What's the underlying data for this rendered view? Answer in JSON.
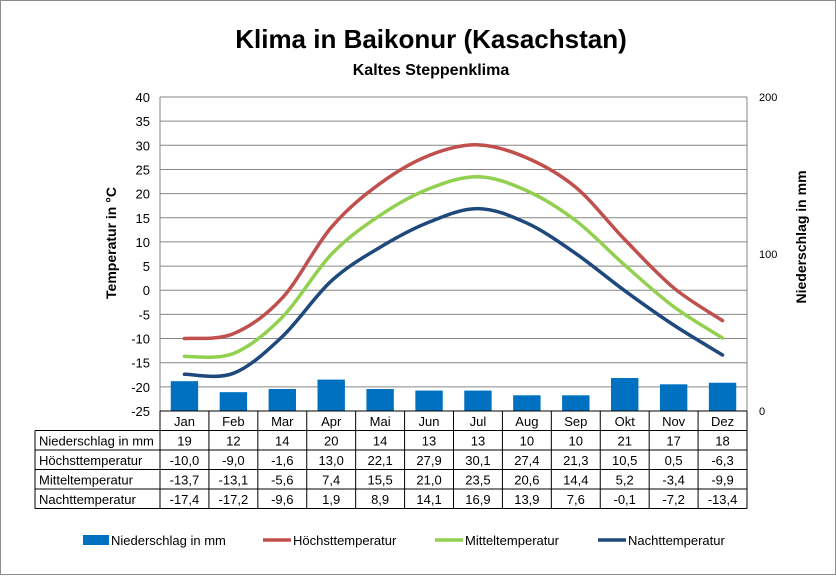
{
  "chart_data": {
    "type": "bar+line",
    "title": "Klima in Baikonur (Kasachstan)",
    "subtitle": "Kaltes Steppenklima",
    "ylabel": "Temperatur in °C",
    "y2label": "Niederschlag in mm",
    "ylim": [
      -25,
      40
    ],
    "y2lim": [
      0,
      200
    ],
    "yticks": [
      "40",
      "35",
      "30",
      "25",
      "20",
      "15",
      "10",
      "5",
      "0",
      "-5",
      "-10",
      "-15",
      "-20",
      "-25"
    ],
    "y2ticks": [
      "200",
      "100",
      "0"
    ],
    "grid": true,
    "legend_position": "bottom",
    "categories": [
      "Jan",
      "Feb",
      "Mar",
      "Apr",
      "Mai",
      "Jun",
      "Jul",
      "Aug",
      "Sep",
      "Okt",
      "Nov",
      "Dez"
    ],
    "series": [
      {
        "name": "Niederschlag in mm",
        "type": "bar",
        "axis": "right",
        "color": "#0070c0",
        "values": [
          19,
          12,
          14,
          20,
          14,
          13,
          13,
          10,
          10,
          21,
          17,
          18
        ],
        "labels": [
          "19",
          "12",
          "14",
          "20",
          "14",
          "13",
          "13",
          "10",
          "10",
          "21",
          "17",
          "18"
        ]
      },
      {
        "name": "Höchsttemperatur",
        "type": "line",
        "axis": "left",
        "color": "#c0504d",
        "values": [
          -10.0,
          -9.0,
          -1.6,
          13.0,
          22.1,
          27.9,
          30.1,
          27.4,
          21.3,
          10.5,
          0.5,
          -6.3
        ],
        "labels": [
          "-10,0",
          "-9,0",
          "-1,6",
          "13,0",
          "22,1",
          "27,9",
          "30,1",
          "27,4",
          "21,3",
          "10,5",
          "0,5",
          "-6,3"
        ]
      },
      {
        "name": "Mitteltemperatur",
        "type": "line",
        "axis": "left",
        "color": "#92d050",
        "values": [
          -13.7,
          -13.1,
          -5.6,
          7.4,
          15.5,
          21.0,
          23.5,
          20.6,
          14.4,
          5.2,
          -3.4,
          -9.9
        ],
        "labels": [
          "-13,7",
          "-13,1",
          "-5,6",
          "7,4",
          "15,5",
          "21,0",
          "23,5",
          "20,6",
          "14,4",
          "5,2",
          "-3,4",
          "-9,9"
        ]
      },
      {
        "name": "Nachttemperatur",
        "type": "line",
        "axis": "left",
        "color": "#1f497d",
        "values": [
          -17.4,
          -17.2,
          -9.6,
          1.9,
          8.9,
          14.1,
          16.9,
          13.9,
          7.6,
          -0.1,
          -7.2,
          -13.4
        ],
        "labels": [
          "-17,4",
          "-17,2",
          "-9,6",
          "1,9",
          "8,9",
          "14,1",
          "16,9",
          "13,9",
          "7,6",
          "-0,1",
          "-7,2",
          "-13,4"
        ]
      }
    ]
  }
}
